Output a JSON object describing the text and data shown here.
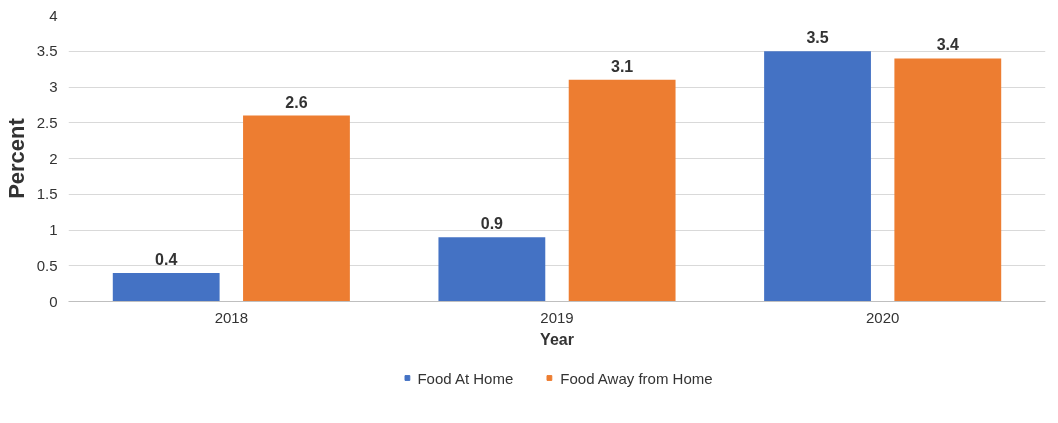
{
  "chart_data": {
    "type": "bar",
    "xlabel": "Year",
    "ylabel": "Percent",
    "categories": [
      "2018",
      "2019",
      "2020"
    ],
    "series": [
      {
        "name": "Food At Home",
        "color": "#4472c4",
        "values": [
          0.4,
          0.9,
          3.5
        ]
      },
      {
        "name": "Food Away from Home",
        "color": "#ed7d31",
        "values": [
          2.6,
          3.1,
          3.4
        ]
      }
    ],
    "ylim": [
      0,
      4
    ],
    "yticks": [
      0,
      {
        "value": 0.5,
        "label": "0.5"
      },
      1,
      {
        "value": 1.5,
        "label": "1.5"
      },
      2,
      {
        "value": 2.5,
        "label": "2.5"
      },
      3,
      {
        "value": 3.5,
        "label": "3.5"
      },
      4
    ],
    "grid": "y",
    "legend": "bottom",
    "data_labels": true
  }
}
